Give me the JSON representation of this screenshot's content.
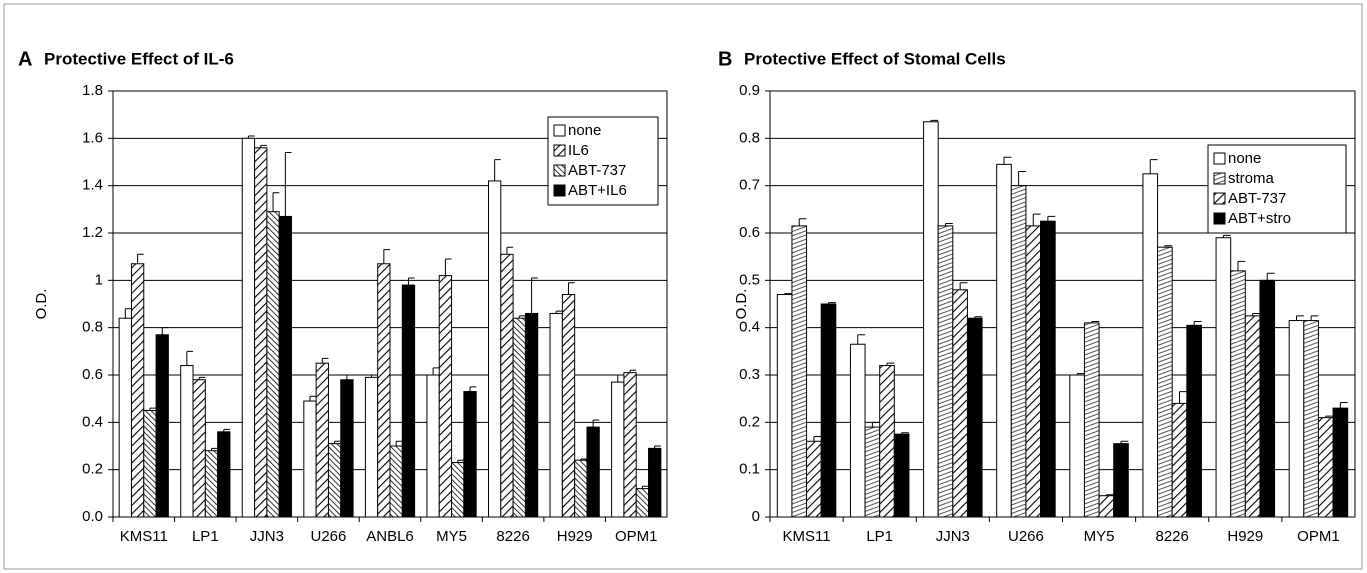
{
  "chart_data": [
    {
      "type": "bar",
      "label": "A",
      "title": "Protective Effect of IL-6",
      "ylabel": "O.D.",
      "categories": [
        "KMS11",
        "LP1",
        "JJN3",
        "U266",
        "ANBL6",
        "MY5",
        "8226",
        "H929",
        "OPM1"
      ],
      "ylim": [
        0,
        1.8
      ],
      "yticks": [
        {
          "value": 0,
          "label": "0.0"
        },
        0.2,
        0.4,
        0.6,
        0.8,
        1,
        1.2,
        1.4,
        1.6,
        1.8
      ],
      "grid": true,
      "legend": "upper right",
      "series": [
        {
          "name": "none",
          "color": "#ffffff",
          "hatch": "none",
          "values": [
            0.84,
            0.64,
            1.6,
            0.49,
            0.59,
            0.6,
            1.42,
            0.86,
            0.57
          ],
          "errors": [
            0.04,
            0.06,
            0.01,
            0.02,
            0.01,
            0.03,
            0.09,
            0.01,
            0.03
          ]
        },
        {
          "name": "IL6",
          "color": "#ffffff",
          "hatch": "diagonal",
          "values": [
            1.07,
            0.58,
            1.56,
            0.65,
            1.07,
            1.02,
            1.11,
            0.94,
            0.61
          ],
          "errors": [
            0.04,
            0.01,
            0.01,
            0.02,
            0.06,
            0.07,
            0.03,
            0.05,
            0.01
          ]
        },
        {
          "name": "ABT-737",
          "color": "#ffffff",
          "hatch": "back-diagonal",
          "values": [
            0.45,
            0.28,
            1.29,
            0.31,
            0.3,
            0.23,
            0.84,
            0.24,
            0.12
          ],
          "errors": [
            0.01,
            0.01,
            0.08,
            0.01,
            0.02,
            0.01,
            0.01,
            0.005,
            0.01
          ]
        },
        {
          "name": "ABT+IL6",
          "color": "#000000",
          "hatch": "none",
          "values": [
            0.77,
            0.36,
            1.27,
            0.58,
            0.98,
            0.53,
            0.86,
            0.38,
            0.29
          ],
          "errors": [
            0.03,
            0.01,
            0.27,
            0.02,
            0.03,
            0.02,
            0.15,
            0.03,
            0.01
          ]
        }
      ]
    },
    {
      "type": "bar",
      "label": "B",
      "title": "Protective Effect of Stomal Cells",
      "ylabel": "O.D.",
      "categories": [
        "KMS11",
        "LP1",
        "JJN3",
        "U266",
        "MY5",
        "8226",
        "H929",
        "OPM1"
      ],
      "ylim": [
        0,
        0.9
      ],
      "yticks": [
        0,
        0.1,
        0.2,
        0.3,
        0.4,
        0.5,
        0.6,
        0.7,
        0.8,
        0.9
      ],
      "grid": true,
      "legend": "upper right",
      "series": [
        {
          "name": "none",
          "color": "#ffffff",
          "hatch": "none",
          "values": [
            0.47,
            0.365,
            0.835,
            0.745,
            0.3,
            0.725,
            0.59,
            0.415
          ],
          "errors": [
            0.002,
            0.02,
            0.003,
            0.015,
            0.003,
            0.03,
            0.005,
            0.01
          ]
        },
        {
          "name": "stroma",
          "color": "#ffffff",
          "hatch": "horizontal",
          "values": [
            0.615,
            0.19,
            0.615,
            0.7,
            0.41,
            0.57,
            0.52,
            0.415
          ],
          "errors": [
            0.015,
            0.01,
            0.005,
            0.03,
            0.003,
            0.003,
            0.02,
            0.01
          ]
        },
        {
          "name": "ABT-737",
          "color": "#ffffff",
          "hatch": "diagonal",
          "values": [
            0.16,
            0.32,
            0.48,
            0.615,
            0.045,
            0.24,
            0.425,
            0.21
          ],
          "errors": [
            0.01,
            0.005,
            0.015,
            0.025,
            0.002,
            0.025,
            0.005,
            0.003
          ]
        },
        {
          "name": "ABT+stro",
          "color": "#000000",
          "hatch": "none",
          "values": [
            0.45,
            0.175,
            0.42,
            0.625,
            0.155,
            0.405,
            0.5,
            0.23
          ],
          "errors": [
            0.003,
            0.003,
            0.003,
            0.01,
            0.005,
            0.008,
            0.015,
            0.012
          ]
        }
      ]
    }
  ]
}
